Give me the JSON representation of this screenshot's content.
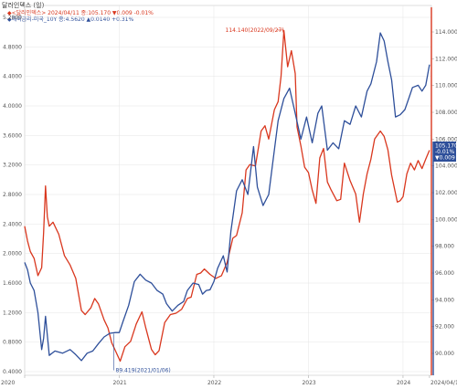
{
  "title": "달러인덱스 (일)",
  "legend": {
    "line1": "◆<달러인덱스> 2024/04/11 종:105.170 ▼0.009 -0.01%",
    "line2": "◆해외금리-미국_10Y 종:4.5620 ▲0.0140 +0.31%"
  },
  "chart_data": {
    "type": "line",
    "x_axis_labels": [
      "2020",
      "2021",
      "2022",
      "2023",
      "2024",
      "2024/04/11"
    ],
    "left_axis": {
      "ticks": [
        "5.2000",
        "4.8000",
        "4.4000",
        "4.0000",
        "3.6000",
        "3.2000",
        "2.8000",
        "2.4000",
        "2.0000",
        "1.6000",
        "1.2000",
        "0.8000",
        "0.4000"
      ],
      "ylim": [
        0.4,
        5.2
      ]
    },
    "right_axis": {
      "ticks": [
        "114.000",
        "112.000",
        "110.000",
        "108.000",
        "106.000",
        "104.000",
        "102.000",
        "100.000",
        "98.000",
        "96.000",
        "94.000",
        "92.000",
        "90.000"
      ],
      "ylim": [
        88.0,
        115.0
      ]
    },
    "series": [
      {
        "color": "#d9371e",
        "axis": "right",
        "points": [
          [
            2020.0,
            99.5
          ],
          [
            2020.03,
            98.4
          ],
          [
            2020.06,
            97.6
          ],
          [
            2020.1,
            97.1
          ],
          [
            2020.14,
            95.8
          ],
          [
            2020.18,
            96.4
          ],
          [
            2020.2,
            99.0
          ],
          [
            2020.22,
            102.5
          ],
          [
            2020.24,
            100.2
          ],
          [
            2020.26,
            99.5
          ],
          [
            2020.3,
            99.8
          ],
          [
            2020.36,
            98.9
          ],
          [
            2020.42,
            97.3
          ],
          [
            2020.48,
            96.6
          ],
          [
            2020.54,
            95.6
          ],
          [
            2020.6,
            93.2
          ],
          [
            2020.64,
            92.9
          ],
          [
            2020.7,
            93.4
          ],
          [
            2020.74,
            94.1
          ],
          [
            2020.78,
            93.7
          ],
          [
            2020.84,
            92.5
          ],
          [
            2020.88,
            91.9
          ],
          [
            2020.92,
            90.8
          ],
          [
            2020.96,
            90.2
          ],
          [
            2021.01,
            89.419
          ],
          [
            2021.06,
            90.5
          ],
          [
            2021.12,
            90.9
          ],
          [
            2021.18,
            92.2
          ],
          [
            2021.24,
            93.1
          ],
          [
            2021.28,
            91.9
          ],
          [
            2021.34,
            90.3
          ],
          [
            2021.38,
            89.9
          ],
          [
            2021.42,
            90.2
          ],
          [
            2021.48,
            92.3
          ],
          [
            2021.54,
            92.9
          ],
          [
            2021.6,
            93.0
          ],
          [
            2021.66,
            93.3
          ],
          [
            2021.72,
            94.1
          ],
          [
            2021.76,
            94.2
          ],
          [
            2021.82,
            95.9
          ],
          [
            2021.86,
            96.0
          ],
          [
            2021.9,
            96.3
          ],
          [
            2021.96,
            95.9
          ],
          [
            2022.02,
            95.6
          ],
          [
            2022.08,
            95.8
          ],
          [
            2022.14,
            96.8
          ],
          [
            2022.2,
            98.6
          ],
          [
            2022.24,
            98.8
          ],
          [
            2022.3,
            100.5
          ],
          [
            2022.34,
            103.7
          ],
          [
            2022.38,
            104.1
          ],
          [
            2022.44,
            104.0
          ],
          [
            2022.5,
            106.6
          ],
          [
            2022.54,
            107.0
          ],
          [
            2022.58,
            106.0
          ],
          [
            2022.64,
            108.2
          ],
          [
            2022.68,
            108.8
          ],
          [
            2022.71,
            110.7
          ],
          [
            2022.74,
            114.1
          ],
          [
            2022.78,
            111.4
          ],
          [
            2022.82,
            112.6
          ],
          [
            2022.86,
            110.9
          ],
          [
            2022.88,
            106.9
          ],
          [
            2022.92,
            105.5
          ],
          [
            2022.96,
            103.9
          ],
          [
            2023.0,
            103.5
          ],
          [
            2023.04,
            102.2
          ],
          [
            2023.08,
            101.2
          ],
          [
            2023.12,
            104.6
          ],
          [
            2023.16,
            105.3
          ],
          [
            2023.2,
            102.8
          ],
          [
            2023.24,
            102.2
          ],
          [
            2023.3,
            101.4
          ],
          [
            2023.34,
            101.5
          ],
          [
            2023.38,
            104.2
          ],
          [
            2023.44,
            102.9
          ],
          [
            2023.5,
            101.9
          ],
          [
            2023.54,
            99.8
          ],
          [
            2023.58,
            101.9
          ],
          [
            2023.62,
            103.4
          ],
          [
            2023.66,
            104.5
          ],
          [
            2023.7,
            106.0
          ],
          [
            2023.76,
            106.6
          ],
          [
            2023.8,
            106.2
          ],
          [
            2023.84,
            105.2
          ],
          [
            2023.88,
            103.3
          ],
          [
            2023.94,
            101.3
          ],
          [
            2023.97,
            101.4
          ],
          [
            2024.0,
            101.7
          ],
          [
            2024.04,
            103.4
          ],
          [
            2024.08,
            104.2
          ],
          [
            2024.12,
            103.7
          ],
          [
            2024.16,
            104.4
          ],
          [
            2024.2,
            103.8
          ],
          [
            2024.24,
            104.5
          ],
          [
            2024.28,
            105.17
          ]
        ]
      },
      {
        "color": "#2e4f9a",
        "axis": "left",
        "points": [
          [
            2020.0,
            1.88
          ],
          [
            2020.03,
            1.78
          ],
          [
            2020.06,
            1.6
          ],
          [
            2020.1,
            1.5
          ],
          [
            2020.14,
            1.2
          ],
          [
            2020.18,
            0.7
          ],
          [
            2020.2,
            0.85
          ],
          [
            2020.22,
            1.15
          ],
          [
            2020.26,
            0.62
          ],
          [
            2020.32,
            0.68
          ],
          [
            2020.4,
            0.65
          ],
          [
            2020.48,
            0.7
          ],
          [
            2020.54,
            0.63
          ],
          [
            2020.6,
            0.55
          ],
          [
            2020.66,
            0.65
          ],
          [
            2020.72,
            0.68
          ],
          [
            2020.78,
            0.78
          ],
          [
            2020.84,
            0.87
          ],
          [
            2020.9,
            0.92
          ],
          [
            2020.96,
            0.93
          ],
          [
            2021.0,
            0.93
          ],
          [
            2021.04,
            1.08
          ],
          [
            2021.1,
            1.3
          ],
          [
            2021.16,
            1.62
          ],
          [
            2021.22,
            1.72
          ],
          [
            2021.28,
            1.64
          ],
          [
            2021.34,
            1.6
          ],
          [
            2021.4,
            1.5
          ],
          [
            2021.46,
            1.45
          ],
          [
            2021.5,
            1.32
          ],
          [
            2021.56,
            1.22
          ],
          [
            2021.62,
            1.3
          ],
          [
            2021.68,
            1.35
          ],
          [
            2021.72,
            1.5
          ],
          [
            2021.78,
            1.6
          ],
          [
            2021.84,
            1.58
          ],
          [
            2021.88,
            1.45
          ],
          [
            2021.92,
            1.5
          ],
          [
            2021.96,
            1.51
          ],
          [
            2022.0,
            1.62
          ],
          [
            2022.04,
            1.8
          ],
          [
            2022.1,
            1.97
          ],
          [
            2022.14,
            1.75
          ],
          [
            2022.18,
            2.3
          ],
          [
            2022.24,
            2.85
          ],
          [
            2022.3,
            3.0
          ],
          [
            2022.36,
            2.8
          ],
          [
            2022.42,
            3.45
          ],
          [
            2022.46,
            2.9
          ],
          [
            2022.52,
            2.65
          ],
          [
            2022.58,
            2.8
          ],
          [
            2022.62,
            3.2
          ],
          [
            2022.68,
            3.8
          ],
          [
            2022.74,
            4.1
          ],
          [
            2022.8,
            4.24
          ],
          [
            2022.86,
            3.9
          ],
          [
            2022.92,
            3.55
          ],
          [
            2022.98,
            3.85
          ],
          [
            2023.04,
            3.5
          ],
          [
            2023.1,
            3.9
          ],
          [
            2023.14,
            4.0
          ],
          [
            2023.2,
            3.4
          ],
          [
            2023.26,
            3.5
          ],
          [
            2023.32,
            3.42
          ],
          [
            2023.38,
            3.8
          ],
          [
            2023.44,
            3.75
          ],
          [
            2023.5,
            4.0
          ],
          [
            2023.56,
            3.85
          ],
          [
            2023.62,
            4.2
          ],
          [
            2023.66,
            4.3
          ],
          [
            2023.72,
            4.6
          ],
          [
            2023.76,
            4.99
          ],
          [
            2023.8,
            4.88
          ],
          [
            2023.84,
            4.6
          ],
          [
            2023.88,
            4.35
          ],
          [
            2023.92,
            3.85
          ],
          [
            2023.97,
            3.88
          ],
          [
            2024.02,
            3.95
          ],
          [
            2024.06,
            4.1
          ],
          [
            2024.1,
            4.25
          ],
          [
            2024.16,
            4.28
          ],
          [
            2024.2,
            4.2
          ],
          [
            2024.24,
            4.28
          ],
          [
            2024.28,
            4.56
          ]
        ]
      }
    ],
    "annotations": {
      "high": "114.140(2022/09/27)",
      "low": "89.419(2021/01/06)"
    },
    "price_badge": [
      "105.170",
      "-0.01%",
      "▼0.009"
    ]
  }
}
